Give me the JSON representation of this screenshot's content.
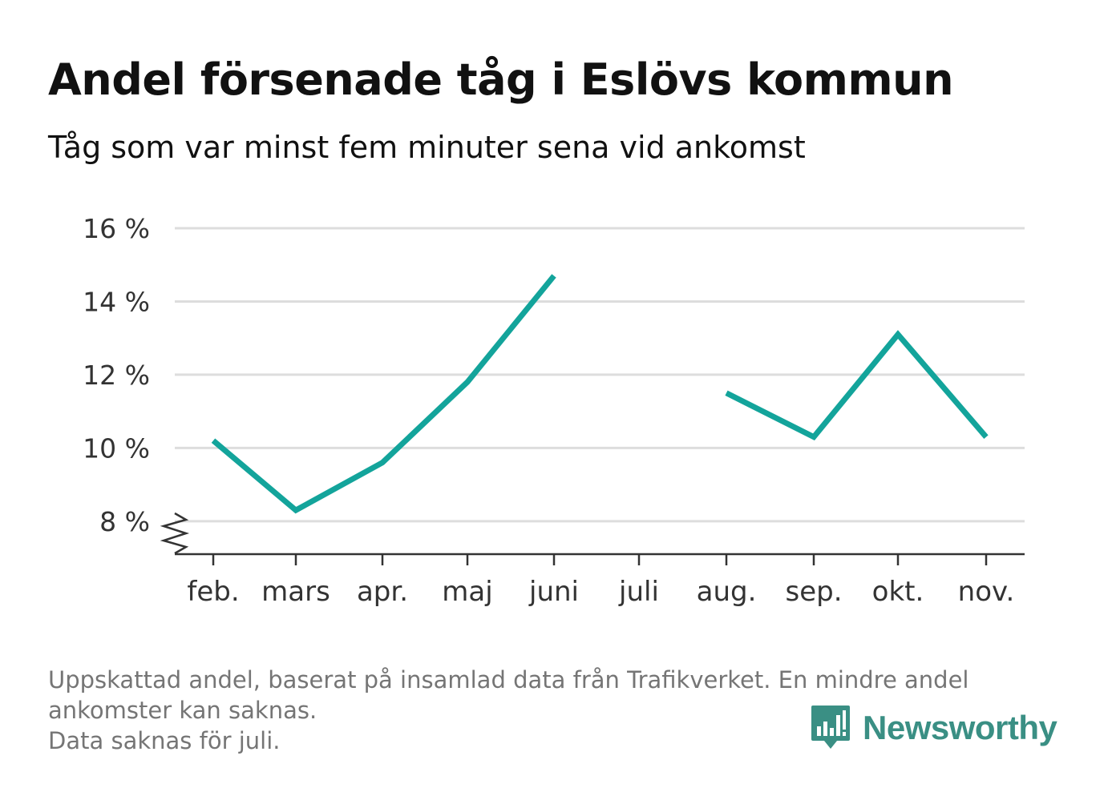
{
  "title": "Andel försenade tåg i Eslövs kommun",
  "subtitle": "Tåg som var minst fem minuter sena vid ankomst",
  "footnote": {
    "line1": "Uppskattad andel, baserat på insamlad data från Trafikverket. En mindre andel",
    "line2": "ankomster kan saknas.",
    "line3": "Data saknas för juli."
  },
  "brand": {
    "name": "Newsworthy",
    "icon": "newsworthy-logo-icon",
    "color": "#3a8f84"
  },
  "colors": {
    "line": "#13a49b",
    "grid": "#dddddd",
    "axis": "#333333",
    "tick_label": "#333333"
  },
  "chart_data": {
    "type": "line",
    "title": "Andel försenade tåg i Eslövs kommun",
    "subtitle": "Tåg som var minst fem minuter sena vid ankomst",
    "categories": [
      "feb.",
      "mars",
      "apr.",
      "maj",
      "juni",
      "juli",
      "aug.",
      "sep.",
      "okt.",
      "nov."
    ],
    "series": [
      {
        "values": [
          10.2,
          8.3,
          9.6,
          11.8,
          14.7,
          null,
          11.5,
          10.3,
          13.1,
          10.3
        ]
      }
    ],
    "yticks": [
      8,
      10,
      12,
      14,
      16
    ],
    "ytick_labels": [
      "8 %",
      "10 %",
      "12 %",
      "14 %",
      "16 %"
    ],
    "ylim": [
      7.1,
      16.0
    ],
    "y_axis_break": true,
    "grid": "horizontal",
    "legend": "none"
  }
}
